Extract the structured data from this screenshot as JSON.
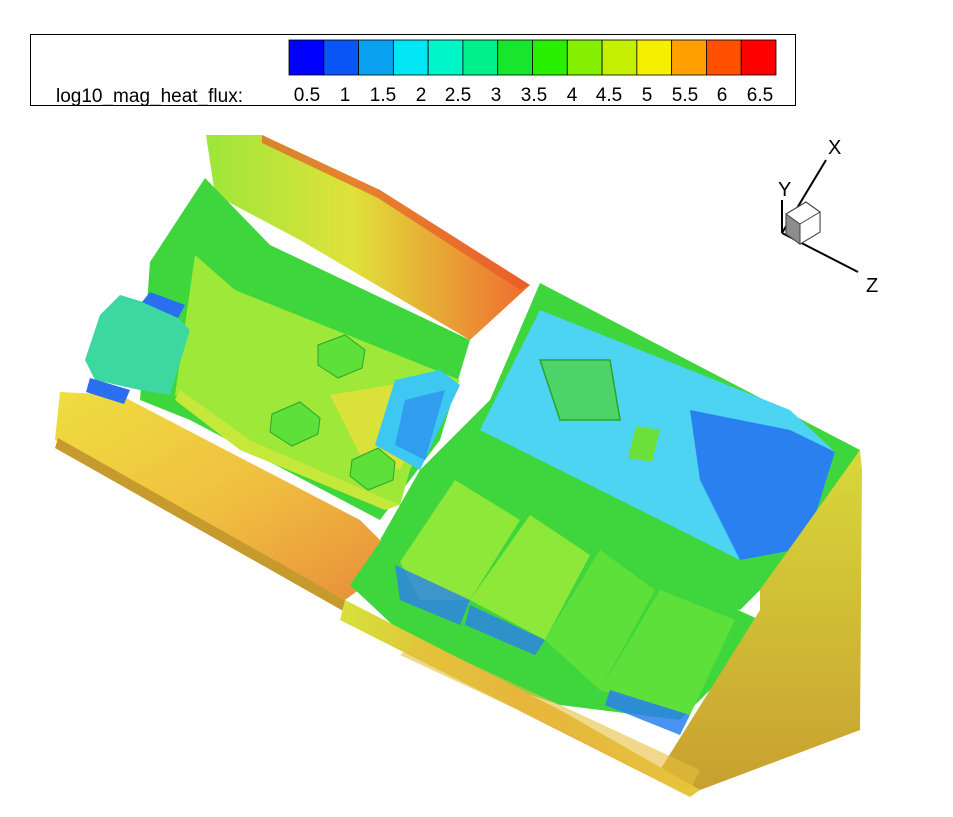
{
  "legend": {
    "variable": "log10_mag_heat_flux:",
    "levels": [
      "0.5",
      "1",
      "1.5",
      "2",
      "2.5",
      "3",
      "3.5",
      "4",
      "4.5",
      "5",
      "5.5",
      "6",
      "6.5"
    ],
    "colors": [
      "#0000ff",
      "#0a55f5",
      "#0aa0f0",
      "#00e6f5",
      "#00f5c8",
      "#00f08c",
      "#18e62e",
      "#28f000",
      "#84f000",
      "#c4f000",
      "#f5f000",
      "#ff9f00",
      "#ff5000",
      "#ff0000"
    ]
  },
  "axes": {
    "x_label": "X",
    "y_label": "Y",
    "z_label": "Z"
  },
  "palette": {
    "green": "#3dd93a",
    "lime": "#8ee83a",
    "yellow": "#e8e63a",
    "orange": "#f0a03c",
    "cyan": "#3cd8f0",
    "blue": "#2a78f0",
    "red": "#f05030"
  }
}
